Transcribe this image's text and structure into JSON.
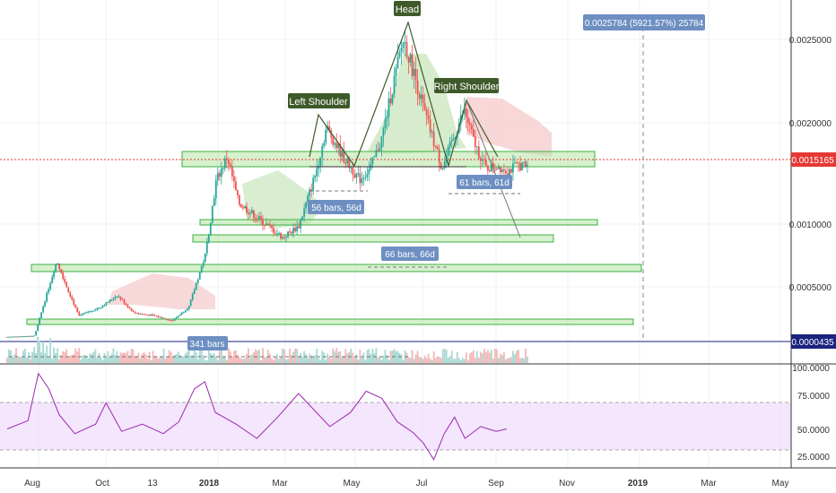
{
  "chart_data": {
    "type": "candlestick",
    "symbol_pair": "",
    "x_ticks": [
      "Aug",
      "Oct",
      "13",
      "2018",
      "Mar",
      "May",
      "Jul",
      "Sep",
      "Nov",
      "2019",
      "Mar",
      "May"
    ],
    "y_ticks": [
      "0.0025000",
      "0.0020000",
      "0.0010000",
      "0.0005000"
    ],
    "y_current_label": "0.0015165",
    "y_baseline_label": "0.0000435",
    "ylim": [
      0.0,
      0.0028
    ],
    "rsi_ticks": [
      "100.0000",
      "75.0000",
      "50.0000",
      "25.0000"
    ],
    "rsi_range": [
      15,
      100
    ],
    "rsi_band": [
      30,
      70
    ],
    "price_path": [
      {
        "x": 0.0,
        "y": 4e-05
      },
      {
        "x": 0.05,
        "y": 5e-05
      },
      {
        "x": 0.065,
        "y": 0.0003
      },
      {
        "x": 0.09,
        "y": 0.0007
      },
      {
        "x": 0.11,
        "y": 0.00045
      },
      {
        "x": 0.13,
        "y": 0.00022
      },
      {
        "x": 0.17,
        "y": 0.0003
      },
      {
        "x": 0.2,
        "y": 0.0004
      },
      {
        "x": 0.23,
        "y": 0.00025
      },
      {
        "x": 0.27,
        "y": 0.00022
      },
      {
        "x": 0.3,
        "y": 0.00018
      },
      {
        "x": 0.33,
        "y": 0.0003
      },
      {
        "x": 0.36,
        "y": 0.00075
      },
      {
        "x": 0.38,
        "y": 0.0014
      },
      {
        "x": 0.4,
        "y": 0.0016
      },
      {
        "x": 0.42,
        "y": 0.0012
      },
      {
        "x": 0.46,
        "y": 0.00105
      },
      {
        "x": 0.5,
        "y": 0.0009
      },
      {
        "x": 0.53,
        "y": 0.001
      },
      {
        "x": 0.56,
        "y": 0.00145
      },
      {
        "x": 0.58,
        "y": 0.00185
      },
      {
        "x": 0.61,
        "y": 0.0016
      },
      {
        "x": 0.64,
        "y": 0.0014
      },
      {
        "x": 0.66,
        "y": 0.0015
      },
      {
        "x": 0.68,
        "y": 0.00175
      },
      {
        "x": 0.7,
        "y": 0.0022
      },
      {
        "x": 0.72,
        "y": 0.00262
      },
      {
        "x": 0.74,
        "y": 0.0023
      },
      {
        "x": 0.76,
        "y": 0.00195
      },
      {
        "x": 0.79,
        "y": 0.0015
      },
      {
        "x": 0.81,
        "y": 0.00175
      },
      {
        "x": 0.83,
        "y": 0.002
      },
      {
        "x": 0.85,
        "y": 0.0017
      },
      {
        "x": 0.87,
        "y": 0.0015
      },
      {
        "x": 0.89,
        "y": 0.00152
      },
      {
        "x": 0.91,
        "y": 0.00148
      },
      {
        "x": 0.93,
        "y": 0.00153
      },
      {
        "x": 0.945,
        "y": 0.00151
      }
    ],
    "rsi_path": [
      {
        "x": 0.0,
        "y": 48
      },
      {
        "x": 0.04,
        "y": 55
      },
      {
        "x": 0.06,
        "y": 95
      },
      {
        "x": 0.08,
        "y": 82
      },
      {
        "x": 0.1,
        "y": 60
      },
      {
        "x": 0.13,
        "y": 44
      },
      {
        "x": 0.17,
        "y": 52
      },
      {
        "x": 0.19,
        "y": 70
      },
      {
        "x": 0.22,
        "y": 46
      },
      {
        "x": 0.26,
        "y": 52
      },
      {
        "x": 0.3,
        "y": 44
      },
      {
        "x": 0.33,
        "y": 54
      },
      {
        "x": 0.36,
        "y": 82
      },
      {
        "x": 0.38,
        "y": 88
      },
      {
        "x": 0.4,
        "y": 62
      },
      {
        "x": 0.44,
        "y": 52
      },
      {
        "x": 0.48,
        "y": 40
      },
      {
        "x": 0.52,
        "y": 58
      },
      {
        "x": 0.56,
        "y": 78
      },
      {
        "x": 0.59,
        "y": 64
      },
      {
        "x": 0.62,
        "y": 50
      },
      {
        "x": 0.66,
        "y": 62
      },
      {
        "x": 0.69,
        "y": 80
      },
      {
        "x": 0.72,
        "y": 74
      },
      {
        "x": 0.75,
        "y": 54
      },
      {
        "x": 0.78,
        "y": 45
      },
      {
        "x": 0.8,
        "y": 36
      },
      {
        "x": 0.82,
        "y": 22
      },
      {
        "x": 0.84,
        "y": 44
      },
      {
        "x": 0.86,
        "y": 58
      },
      {
        "x": 0.88,
        "y": 40
      },
      {
        "x": 0.91,
        "y": 50
      },
      {
        "x": 0.94,
        "y": 46
      },
      {
        "x": 0.96,
        "y": 48
      }
    ],
    "annotations": {
      "head": "Head",
      "left_shoulder": "Left Shoulder",
      "right_shoulder": "Right Shoulder",
      "measure_top": "0.0025784 (5921.57%) 25784",
      "bars_61": "61 bars, 61d",
      "bars_56": "56 bars, 56d",
      "bars_66": "66 bars, 66d",
      "bars_341": "341 bars"
    },
    "colors": {
      "up": "#26a69a",
      "down": "#ef5350",
      "zone_fill": "#b7e3a4",
      "zone_stroke": "#3cb043",
      "label_blue": "#6d8fc2",
      "label_green": "#3f5a2a",
      "rsi_line": "#9c27b0",
      "rsi_band": "#f1e0fb",
      "cloud_green": "#cfe9c4",
      "cloud_red": "#f6d0d0",
      "current_price": "#e53935",
      "baseline": "#1a237e"
    }
  }
}
